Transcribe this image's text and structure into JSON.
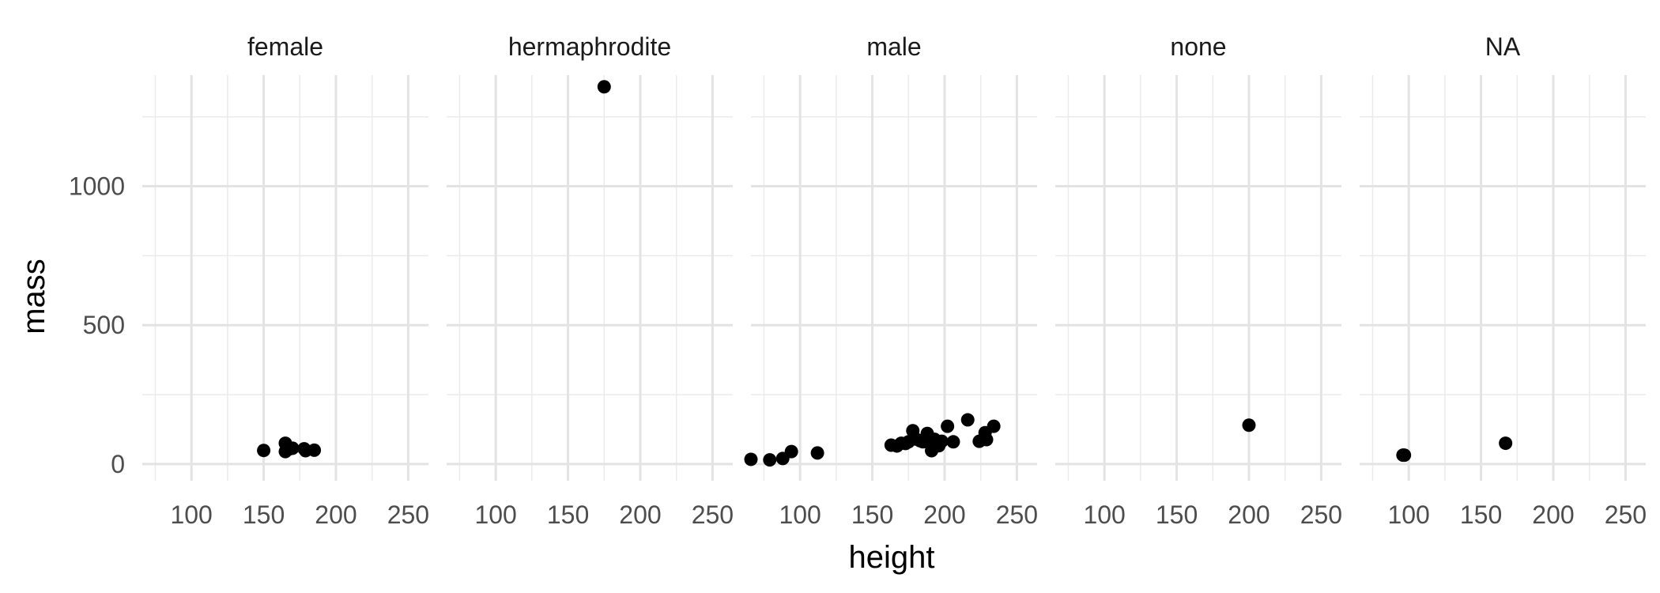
{
  "chart_data": {
    "type": "scatter",
    "title": "",
    "xlabel": "height",
    "ylabel": "mass",
    "xlim": [
      66,
      264
    ],
    "ylim": [
      -60,
      1400
    ],
    "x_ticks": [
      100,
      150,
      200,
      250
    ],
    "x_minor_ticks": [
      75,
      125,
      175,
      225
    ],
    "y_ticks": [
      0,
      500,
      1000
    ],
    "y_minor_ticks": [
      250,
      750,
      1250
    ],
    "grid": true,
    "legend": "none",
    "point_color": "#000000",
    "panels": [
      {
        "name": "female",
        "points": [
          {
            "x": 150,
            "y": 49
          },
          {
            "x": 165,
            "y": 75
          },
          {
            "x": 165,
            "y": 45
          },
          {
            "x": 168,
            "y": 55
          },
          {
            "x": 170,
            "y": 57
          },
          {
            "x": 178,
            "y": 55
          },
          {
            "x": 179,
            "y": 48
          },
          {
            "x": 185,
            "y": 50
          }
        ]
      },
      {
        "name": "hermaphrodite",
        "points": [
          {
            "x": 175,
            "y": 1358
          }
        ]
      },
      {
        "name": "male",
        "points": [
          {
            "x": 66,
            "y": 17
          },
          {
            "x": 79,
            "y": 15
          },
          {
            "x": 88,
            "y": 20
          },
          {
            "x": 94,
            "y": 45
          },
          {
            "x": 112,
            "y": 40
          },
          {
            "x": 163,
            "y": 68
          },
          {
            "x": 167,
            "y": 65
          },
          {
            "x": 170,
            "y": 75
          },
          {
            "x": 173,
            "y": 74
          },
          {
            "x": 175,
            "y": 80
          },
          {
            "x": 178,
            "y": 120
          },
          {
            "x": 180,
            "y": 90
          },
          {
            "x": 183,
            "y": 84
          },
          {
            "x": 185,
            "y": 80
          },
          {
            "x": 188,
            "y": 84
          },
          {
            "x": 188,
            "y": 110
          },
          {
            "x": 191,
            "y": 48
          },
          {
            "x": 193,
            "y": 89
          },
          {
            "x": 196,
            "y": 66
          },
          {
            "x": 198,
            "y": 82
          },
          {
            "x": 202,
            "y": 136
          },
          {
            "x": 206,
            "y": 80
          },
          {
            "x": 216,
            "y": 159
          },
          {
            "x": 224,
            "y": 82
          },
          {
            "x": 228,
            "y": 113
          },
          {
            "x": 229,
            "y": 88
          },
          {
            "x": 234,
            "y": 136
          }
        ]
      },
      {
        "name": "none",
        "points": [
          {
            "x": 200,
            "y": 140
          }
        ]
      },
      {
        "name": "NA",
        "points": [
          {
            "x": 96,
            "y": 32
          },
          {
            "x": 97,
            "y": 32
          },
          {
            "x": 167,
            "y": 75
          }
        ]
      }
    ]
  }
}
